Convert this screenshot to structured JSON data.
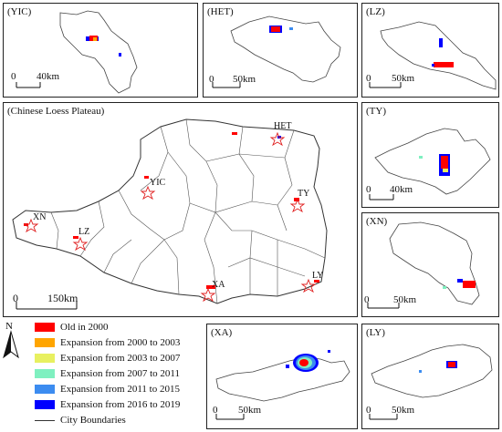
{
  "panels": {
    "yic": {
      "label": "(YIC)",
      "scale": "40km"
    },
    "het": {
      "label": "(HET)",
      "scale": "50km"
    },
    "lz": {
      "label": "(LZ)",
      "scale": "50km"
    },
    "main": {
      "label": "(Chinese Loess Plateau)",
      "scale": "150km"
    },
    "ty": {
      "label": "(TY)",
      "scale": "40km"
    },
    "xn": {
      "label": "(XN)",
      "scale": "50km"
    },
    "xa": {
      "label": "(XA)",
      "scale": "50km"
    },
    "ly": {
      "label": "(LY)",
      "scale": "50km"
    }
  },
  "scale_zero": "0",
  "north_label": "N",
  "city_markers": [
    {
      "code": "HET"
    },
    {
      "code": "YIC"
    },
    {
      "code": "TY"
    },
    {
      "code": "XN"
    },
    {
      "code": "LZ"
    },
    {
      "code": "XA"
    },
    {
      "code": "LY"
    }
  ],
  "legend": [
    {
      "label": "Old in 2000",
      "color": "#ff0000"
    },
    {
      "label": "Expansion from 2000 to 2003",
      "color": "#ffa500"
    },
    {
      "label": "Expansion from 2003 to 2007",
      "color": "#e8f060"
    },
    {
      "label": "Expansion from 2007 to 2011",
      "color": "#7ff0c0"
    },
    {
      "label": "Expansion from 2011 to 2015",
      "color": "#3c8cf0"
    },
    {
      "label": "Expansion from 2016 to 2019",
      "color": "#0000ff"
    }
  ],
  "legend_boundary_label": "City Boundaries"
}
